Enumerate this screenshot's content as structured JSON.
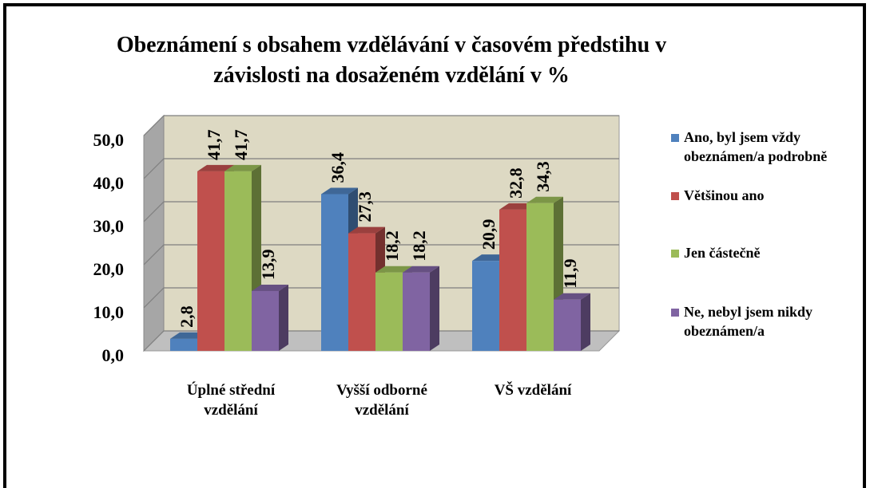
{
  "chart_data": {
    "type": "bar3d",
    "title": "Obeznámení s obsahem vzdělávání v časovém předstihu v závislosti na dosaženém vzdělání v %",
    "categories": [
      "Úplné střední vzdělání",
      "Vyšší odborné vzdělání",
      "VŠ vzdělání"
    ],
    "series": [
      {
        "name": "Ano, byl jsem vždy obeznámen/a podrobně",
        "color": "#4f81bd",
        "values": [
          2.8,
          36.4,
          20.9
        ],
        "value_labels": [
          "2,8",
          "36,4",
          "20,9"
        ]
      },
      {
        "name": "Většinou ano",
        "color": "#c0504d",
        "values": [
          41.7,
          27.3,
          32.8
        ],
        "value_labels": [
          "41,7",
          "27,3",
          "32,8"
        ]
      },
      {
        "name": "Jen částečně",
        "color": "#9bbb59",
        "values": [
          41.7,
          18.2,
          34.3
        ],
        "value_labels": [
          "41,7",
          "18,2",
          "34,3"
        ]
      },
      {
        "name": "Ne, nebyl jsem nikdy obeznámen/a",
        "color": "#8064a2",
        "values": [
          13.9,
          18.2,
          11.9
        ],
        "value_labels": [
          "13,9",
          "18,2",
          "11,9"
        ]
      }
    ],
    "ylim": [
      0,
      50
    ],
    "yticks": [
      {
        "value": 0,
        "label": "0,0"
      },
      {
        "value": 10,
        "label": "10,0"
      },
      {
        "value": 20,
        "label": "20,0"
      },
      {
        "value": 30,
        "label": "30,0"
      },
      {
        "value": 40,
        "label": "40,0"
      },
      {
        "value": 50,
        "label": "50,0"
      }
    ],
    "grid": true,
    "legend": "right"
  }
}
